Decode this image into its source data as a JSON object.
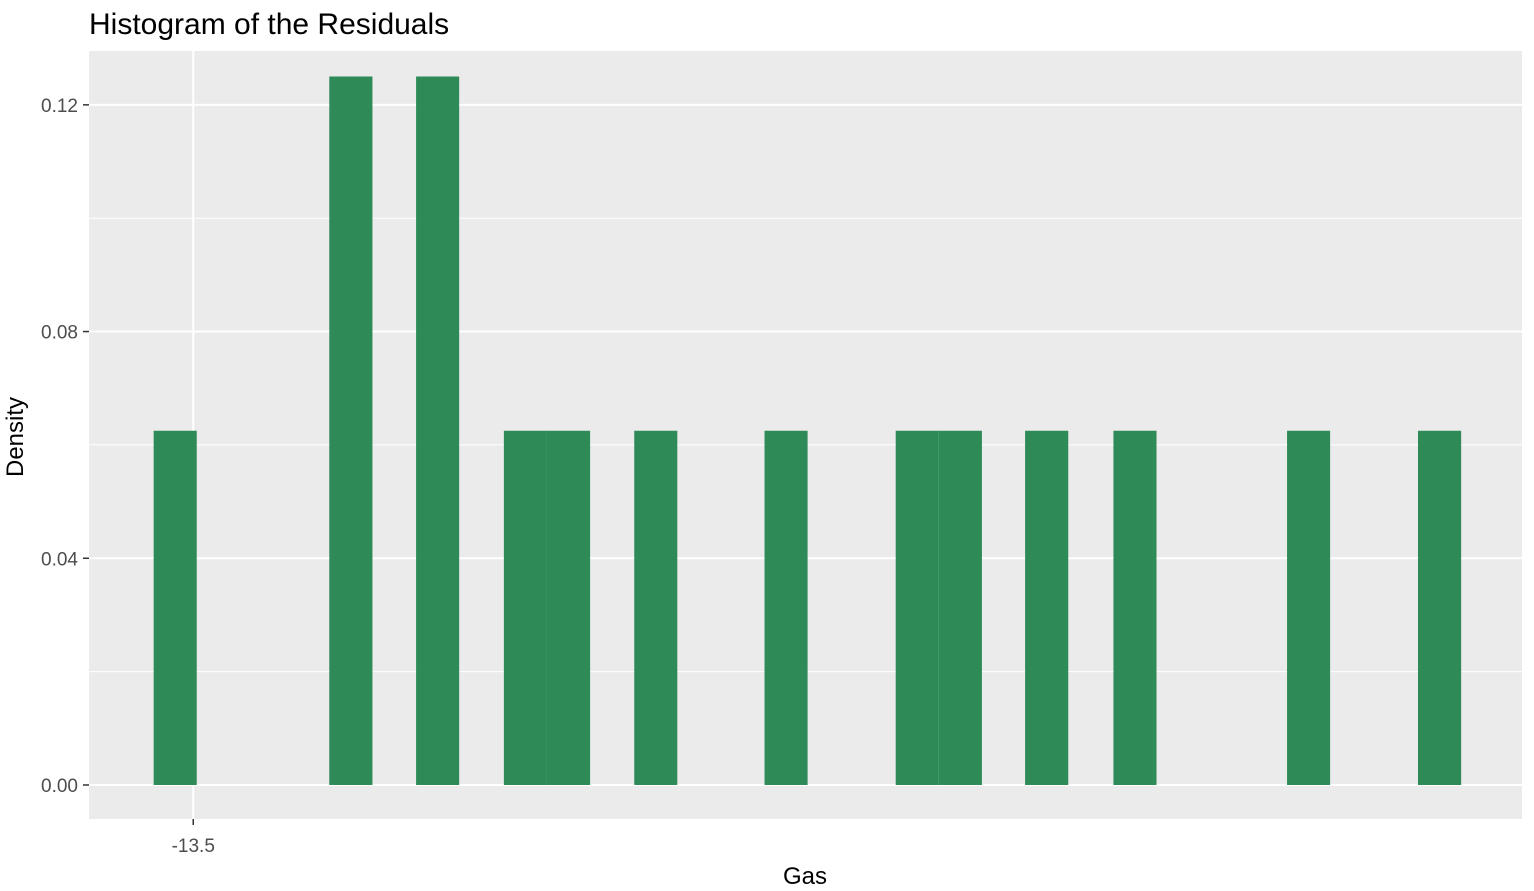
{
  "chart_data": {
    "type": "bar",
    "title": "Histogram of the Residuals",
    "xlabel": "Gas",
    "ylabel": "Density",
    "x_tick_labels": [
      {
        "value": -13.5,
        "label": "-13.5"
      }
    ],
    "y_tick_labels": [
      {
        "value": 0.0,
        "label": "0.00"
      },
      {
        "value": 0.04,
        "label": "0.04"
      },
      {
        "value": 0.08,
        "label": "0.08"
      },
      {
        "value": 0.12,
        "label": "0.12"
      }
    ],
    "ylim": [
      -0.006,
      0.1295
    ],
    "xlim": [
      -14.79,
      2.94
    ],
    "grid": true,
    "bar_color": "#2E8B57",
    "panel_color": "#EBEBEB",
    "bin_width": 0.5333,
    "bins": [
      {
        "x_start": -13.99,
        "x_end": -13.457,
        "density": 0.0625
      },
      {
        "x_start": -11.817,
        "x_end": -11.283,
        "density": 0.125
      },
      {
        "x_start": -10.743,
        "x_end": -10.21,
        "density": 0.125
      },
      {
        "x_start": -9.657,
        "x_end": -9.124,
        "density": 0.0625
      },
      {
        "x_start": -9.124,
        "x_end": -8.59,
        "density": 0.0625
      },
      {
        "x_start": -8.044,
        "x_end": -7.511,
        "density": 0.0625
      },
      {
        "x_start": -6.432,
        "x_end": -5.899,
        "density": 0.0625
      },
      {
        "x_start": -4.809,
        "x_end": -4.276,
        "density": 0.0625
      },
      {
        "x_start": -4.276,
        "x_end": -3.742,
        "density": 0.0625
      },
      {
        "x_start": -3.208,
        "x_end": -2.674,
        "density": 0.0625
      },
      {
        "x_start": -2.115,
        "x_end": -1.582,
        "density": 0.0625
      },
      {
        "x_start": 0.033,
        "x_end": 0.566,
        "density": 0.0625
      },
      {
        "x_start": 1.653,
        "x_end": 2.187,
        "density": 0.0625
      }
    ]
  }
}
